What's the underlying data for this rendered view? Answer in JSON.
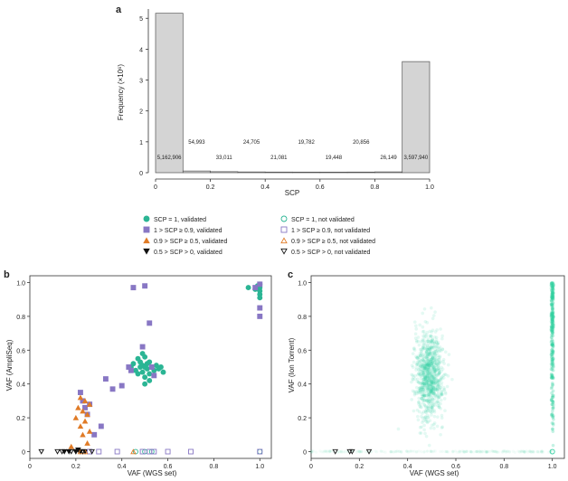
{
  "chart_data": [
    {
      "panel": "a",
      "type": "bar",
      "xlabel": "SCP",
      "ylabel": "Frequency (×10⁶)",
      "xlim": [
        0,
        1
      ],
      "ylim": [
        0,
        5.3
      ],
      "x_ticks": [
        "0",
        "0.2",
        "0.4",
        "0.6",
        "0.8",
        "1.0"
      ],
      "y_ticks": [
        "0",
        "1",
        "2",
        "3",
        "4",
        "5"
      ],
      "bins": [
        {
          "from": 0.0,
          "to": 0.1,
          "value": 5.162906,
          "label": "5,162,906"
        },
        {
          "from": 0.1,
          "to": 0.2,
          "value": 0.054993,
          "label": "54,993"
        },
        {
          "from": 0.2,
          "to": 0.3,
          "value": 0.033011,
          "label": "33,011"
        },
        {
          "from": 0.3,
          "to": 0.4,
          "value": 0.024705,
          "label": "24,705"
        },
        {
          "from": 0.4,
          "to": 0.5,
          "value": 0.021081,
          "label": "21,081"
        },
        {
          "from": 0.5,
          "to": 0.6,
          "value": 0.019782,
          "label": "19,782"
        },
        {
          "from": 0.6,
          "to": 0.7,
          "value": 0.019448,
          "label": "19,448"
        },
        {
          "from": 0.7,
          "to": 0.8,
          "value": 0.020856,
          "label": "20,856"
        },
        {
          "from": 0.8,
          "to": 0.9,
          "value": 0.026149,
          "label": "26,149"
        },
        {
          "from": 0.9,
          "to": 1.0,
          "value": 3.59794,
          "label": "3,597,940"
        }
      ]
    },
    {
      "panel": "b",
      "type": "scatter",
      "xlabel": "VAF (WGS set)",
      "ylabel": "VAF (AmpliSeq)",
      "xlim": [
        0,
        1.05
      ],
      "ylim": [
        -0.04,
        1.04
      ],
      "x_ticks": [
        "0",
        "0.2",
        "0.4",
        "0.6",
        "0.8",
        "1.0"
      ],
      "y_ticks": [
        "0",
        "0.2",
        "0.4",
        "0.6",
        "0.8",
        "1.0"
      ],
      "series": [
        {
          "name": "SCP = 1, validated",
          "marker": "circle",
          "filled": true,
          "color": "#2bb594",
          "points": [
            [
              0.44,
              0.5
            ],
            [
              0.45,
              0.52
            ],
            [
              0.46,
              0.48
            ],
            [
              0.47,
              0.55
            ],
            [
              0.47,
              0.46
            ],
            [
              0.48,
              0.5
            ],
            [
              0.48,
              0.53
            ],
            [
              0.49,
              0.47
            ],
            [
              0.49,
              0.51
            ],
            [
              0.5,
              0.5
            ],
            [
              0.5,
              0.44
            ],
            [
              0.5,
              0.56
            ],
            [
              0.51,
              0.49
            ],
            [
              0.51,
              0.52
            ],
            [
              0.52,
              0.46
            ],
            [
              0.52,
              0.53
            ],
            [
              0.53,
              0.5
            ],
            [
              0.54,
              0.48
            ],
            [
              0.55,
              0.51
            ],
            [
              0.56,
              0.49
            ],
            [
              0.57,
              0.5
            ],
            [
              0.58,
              0.47
            ],
            [
              0.5,
              0.4
            ],
            [
              0.49,
              0.58
            ],
            [
              0.52,
              0.42
            ],
            [
              0.95,
              0.97
            ],
            [
              0.98,
              0.96
            ],
            [
              0.99,
              0.98
            ],
            [
              1.0,
              0.95
            ],
            [
              1.0,
              0.97
            ],
            [
              1.0,
              0.99
            ],
            [
              1.0,
              0.93
            ],
            [
              1.0,
              0.91
            ]
          ]
        },
        {
          "name": "1 > SCP ≥ 0.9, validated",
          "marker": "square",
          "filled": true,
          "color": "#8877c4",
          "points": [
            [
              0.22,
              0.35
            ],
            [
              0.23,
              0.3
            ],
            [
              0.24,
              0.26
            ],
            [
              0.25,
              0.22
            ],
            [
              0.26,
              0.28
            ],
            [
              0.28,
              0.1
            ],
            [
              0.31,
              0.15
            ],
            [
              0.33,
              0.43
            ],
            [
              0.36,
              0.37
            ],
            [
              0.4,
              0.39
            ],
            [
              0.43,
              0.5
            ],
            [
              0.44,
              0.48
            ],
            [
              0.45,
              0.97
            ],
            [
              0.49,
              0.62
            ],
            [
              0.5,
              0.98
            ],
            [
              0.52,
              0.76
            ],
            [
              0.53,
              0.5
            ],
            [
              0.54,
              0.45
            ],
            [
              0.98,
              0.97
            ],
            [
              1.0,
              0.8
            ],
            [
              1.0,
              0.85
            ],
            [
              1.0,
              0.99
            ]
          ]
        },
        {
          "name": "0.9 > SCP ≥ 0.5, validated",
          "marker": "triangle-up",
          "filled": true,
          "color": "#e07b27",
          "points": [
            [
              0.18,
              0.03
            ],
            [
              0.2,
              0.2
            ],
            [
              0.21,
              0.26
            ],
            [
              0.22,
              0.15
            ],
            [
              0.22,
              0.32
            ],
            [
              0.23,
              0.24
            ],
            [
              0.23,
              0.1
            ],
            [
              0.24,
              0.3
            ],
            [
              0.24,
              0.18
            ],
            [
              0.25,
              0.22
            ],
            [
              0.25,
              0.05
            ],
            [
              0.26,
              0.12
            ],
            [
              0.26,
              0.28
            ]
          ]
        },
        {
          "name": "0.5 > SCP > 0, validated",
          "marker": "triangle-down",
          "filled": true,
          "color": "#111111",
          "points": [
            [
              0.15,
              0.0
            ],
            [
              0.17,
              0.0
            ],
            [
              0.2,
              0.0
            ],
            [
              0.21,
              0.01
            ],
            [
              0.22,
              0.0
            ],
            [
              0.24,
              0.0
            ]
          ]
        },
        {
          "name": "SCP = 1, not validated",
          "marker": "circle",
          "filled": false,
          "color": "#2bb594",
          "points": [
            [
              0.46,
              0.0
            ],
            [
              0.5,
              0.0
            ],
            [
              0.53,
              0.0
            ],
            [
              1.0,
              0.0
            ]
          ]
        },
        {
          "name": "1 > SCP ≥ 0.9, not validated",
          "marker": "square",
          "filled": false,
          "color": "#8877c4",
          "points": [
            [
              0.26,
              0.0
            ],
            [
              0.3,
              0.0
            ],
            [
              0.38,
              0.0
            ],
            [
              0.49,
              0.0
            ],
            [
              0.52,
              0.0
            ],
            [
              0.54,
              0.0
            ],
            [
              0.6,
              0.0
            ],
            [
              0.7,
              0.0
            ],
            [
              1.0,
              0.0
            ]
          ]
        },
        {
          "name": "0.9 > SCP ≥ 0.5, not validated",
          "marker": "triangle-up",
          "filled": false,
          "color": "#e07b27",
          "points": [
            [
              0.22,
              0.0
            ],
            [
              0.24,
              0.0
            ],
            [
              0.45,
              0.0
            ]
          ]
        },
        {
          "name": "0.5 > SCP > 0, not validated",
          "marker": "triangle-down",
          "filled": false,
          "color": "#111111",
          "points": [
            [
              0.05,
              0.0
            ],
            [
              0.12,
              0.0
            ],
            [
              0.14,
              0.0
            ],
            [
              0.18,
              0.0
            ],
            [
              0.2,
              0.0
            ],
            [
              0.23,
              0.0
            ],
            [
              0.27,
              0.0
            ]
          ]
        }
      ]
    },
    {
      "panel": "c",
      "type": "scatter",
      "xlabel": "VAF (WGS set)",
      "ylabel": "VAF (Ion Torrent)",
      "xlim": [
        0,
        1.05
      ],
      "ylim": [
        -0.04,
        1.04
      ],
      "x_ticks": [
        "0",
        "0.2",
        "0.4",
        "0.6",
        "0.8",
        "1.0"
      ],
      "y_ticks": [
        "0",
        "0.2",
        "0.4",
        "0.6",
        "0.8",
        "1.0"
      ],
      "color": "#2ecf9f",
      "clusters": [
        {
          "center_x": 0.49,
          "center_y": 0.45,
          "spread_x": 0.03,
          "spread_y": 0.13
        },
        {
          "x": 1.0,
          "y_from": 0.0,
          "y_to": 1.0
        }
      ],
      "baseline_band": {
        "y": 0.0,
        "x_from": 0.0,
        "x_to": 1.0
      },
      "markers": [
        {
          "marker": "triangle-down",
          "points": [
            [
              0.1,
              0.0
            ],
            [
              0.16,
              0.0
            ],
            [
              0.17,
              0.0
            ],
            [
              0.24,
              0.0
            ]
          ]
        },
        {
          "marker": "circle",
          "points": [
            [
              1.0,
              0.0
            ]
          ]
        }
      ]
    }
  ],
  "legend": {
    "items": [
      {
        "label": "SCP = 1, validated",
        "marker": "circle",
        "filled": true,
        "color": "#2bb594"
      },
      {
        "label": "SCP = 1, not validated",
        "marker": "circle",
        "filled": false,
        "color": "#2bb594"
      },
      {
        "label": "1 > SCP ≥ 0.9, validated",
        "marker": "square",
        "filled": true,
        "color": "#8877c4"
      },
      {
        "label": "1 > SCP ≥ 0.9, not validated",
        "marker": "square",
        "filled": false,
        "color": "#8877c4"
      },
      {
        "label": "0.9 > SCP ≥ 0.5, validated",
        "marker": "triangle-up",
        "filled": true,
        "color": "#e07b27"
      },
      {
        "label": "0.9 > SCP ≥ 0.5, not validated",
        "marker": "triangle-up",
        "filled": false,
        "color": "#e07b27"
      },
      {
        "label": "0.5 > SCP > 0, validated",
        "marker": "triangle-down",
        "filled": true,
        "color": "#111111"
      },
      {
        "label": "0.5 > SCP > 0, not validated",
        "marker": "triangle-down",
        "filled": false,
        "color": "#111111"
      }
    ]
  },
  "panel_labels": [
    "a",
    "b",
    "c"
  ],
  "colors": {
    "bar_fill": "#d4d4d4",
    "bar_stroke": "#555555",
    "axis": "#333333"
  }
}
